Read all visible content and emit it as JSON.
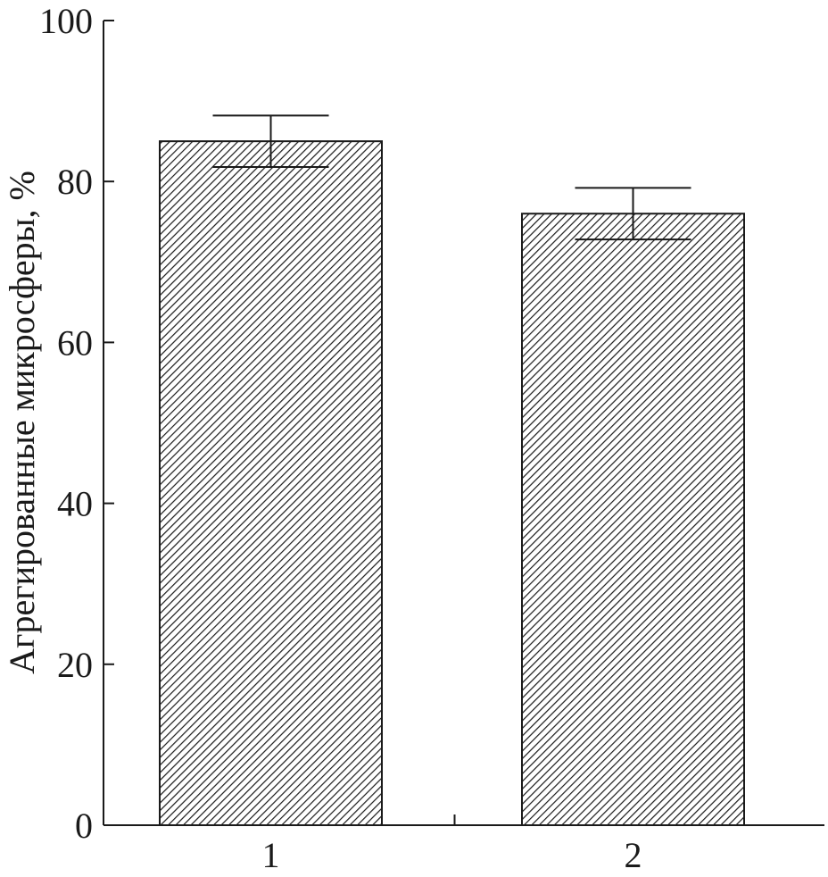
{
  "chart_data": {
    "type": "bar",
    "title": "",
    "xlabel": "",
    "ylabel": "Агрегированные микросферы, %",
    "categories": [
      "1",
      "2"
    ],
    "values": [
      85,
      76
    ],
    "errors": [
      3.2,
      3.2
    ],
    "ylim": [
      0,
      100
    ],
    "yticks": [
      0,
      20,
      40,
      60,
      80,
      100
    ],
    "grid": false,
    "legend": "none",
    "bar_fill": "hatched",
    "colors": {
      "bar_hatch": "#1a1a1a",
      "bar_background": "#ffffff",
      "axis": "#1a1a1a"
    }
  }
}
